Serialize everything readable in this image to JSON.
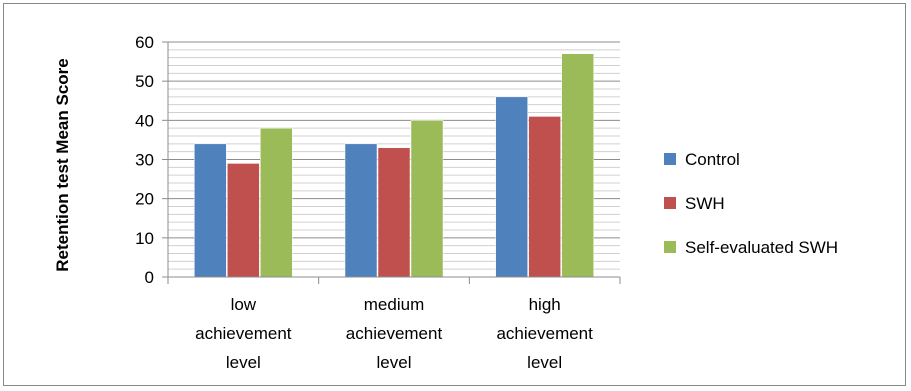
{
  "chart_data": {
    "type": "bar",
    "title": "",
    "xlabel": "",
    "ylabel": "Retention test Mean Score",
    "ylim": [
      0,
      60
    ],
    "yticks": [
      0,
      10,
      20,
      30,
      40,
      50,
      60
    ],
    "grid": true,
    "legend_position": "right",
    "categories": [
      [
        "low",
        "achievement",
        "level"
      ],
      [
        "medium",
        "achievement",
        "level"
      ],
      [
        "high",
        "achievement",
        "level"
      ]
    ],
    "series": [
      {
        "name": "Control",
        "color": "#4f81bd",
        "values": [
          34,
          34,
          46
        ]
      },
      {
        "name": "SWH",
        "color": "#c0504d",
        "values": [
          29,
          33,
          41
        ]
      },
      {
        "name": "Self-evaluated SWH",
        "color": "#9bbb59",
        "values": [
          38,
          40,
          57
        ]
      }
    ]
  }
}
